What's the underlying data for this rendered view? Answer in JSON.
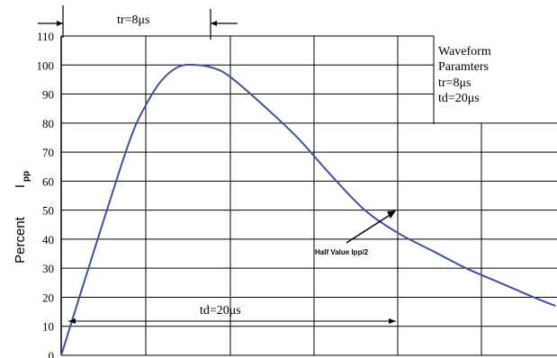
{
  "chart_data": {
    "type": "line",
    "title": "",
    "ylabel_main": "Percent",
    "ylabel_sub": "I",
    "ylabel_subscript": "pp",
    "ylim": [
      0,
      110
    ],
    "yticks": [
      "0",
      "10",
      "20",
      "30",
      "40",
      "50",
      "60",
      "70",
      "80",
      "90",
      "100",
      "110"
    ],
    "grid": true,
    "series": [
      {
        "color": "#3f51a0",
        "x": [
          0,
          2,
          4,
          5,
          6,
          7,
          8,
          9,
          10,
          12,
          14,
          16,
          18,
          20,
          22,
          24,
          26,
          28,
          29.3
        ],
        "y": [
          0,
          37,
          73,
          86,
          95,
          99.5,
          100,
          99,
          96,
          86,
          75,
          62,
          50,
          42,
          36,
          30,
          25,
          20,
          17
        ]
      }
    ],
    "annotations": {
      "tr_label": "tr=8μs",
      "td_label": "td=20μs",
      "half_value_label": "Half Value Ipp/2",
      "legend_title_1": "Waveform",
      "legend_title_2": "Paramters",
      "legend_tr": "tr=8μs",
      "legend_td": "td=20μs"
    }
  }
}
